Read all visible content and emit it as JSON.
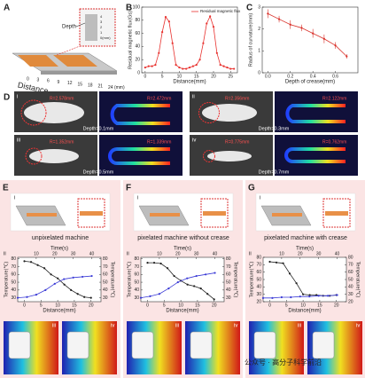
{
  "panel_A": {
    "label": "A",
    "depth": "Depth",
    "distance": "Distance",
    "scale": [
      "0",
      "3",
      "6",
      "9",
      "12",
      "15",
      "18",
      "21",
      "24 (mm)"
    ],
    "inset_scale": [
      "4",
      "3",
      "2",
      "1",
      "0(mm)"
    ]
  },
  "panel_D": {
    "label": "D",
    "items": [
      {
        "num": "i",
        "r_photo": "R=2.578mm",
        "r_sim": "R=2.472mm",
        "depth": "Depth=0.1mm"
      },
      {
        "num": "ii",
        "r_photo": "R=2.356mm",
        "r_sim": "R=2.122mm",
        "depth": "Depth=0.3mm"
      },
      {
        "num": "iii",
        "r_photo": "R=1.352mm",
        "r_sim": "R=1.339mm",
        "depth": "Depth=0.5mm"
      },
      {
        "num": "iv",
        "r_photo": "R=0.775mm",
        "r_sim": "R=0.762mm",
        "depth": "Depth=0.7mm"
      }
    ]
  },
  "watermark": "公众号 · 高分子科学前沿",
  "chart_data": [
    {
      "label": "B",
      "type": "line",
      "xlabel": "Distance(mm)",
      "ylabel": "Residual magnetic flux(Gs)",
      "xlim": [
        -1,
        27
      ],
      "xticks": [
        0,
        5,
        10,
        15,
        20,
        25
      ],
      "ylim": [
        0,
        100
      ],
      "yticks": [
        0,
        20,
        40,
        60,
        80,
        100
      ],
      "legend": "upper right",
      "series": [
        {
          "name": "Residual magnetic flux",
          "color": "#e8322f",
          "x": [
            0,
            1,
            2,
            3,
            4,
            5,
            6,
            7,
            8,
            9,
            10,
            11,
            12,
            13,
            14,
            15,
            16,
            17,
            18,
            19,
            20,
            21,
            22,
            23,
            24,
            25,
            26
          ],
          "values": [
            8,
            10,
            10,
            12,
            30,
            62,
            85,
            78,
            45,
            12,
            8,
            6,
            6,
            8,
            10,
            12,
            20,
            45,
            75,
            86,
            70,
            30,
            12,
            10,
            8,
            6,
            6
          ]
        }
      ]
    },
    {
      "label": "C",
      "type": "line",
      "xlabel": "Depth of crease(mm)",
      "ylabel": "Radius of curvature(mm)",
      "xlim": [
        -0.05,
        0.8
      ],
      "xticks": [
        {
          "value": 0,
          "label": "0.0"
        },
        {
          "value": 0.2,
          "label": "0.2"
        },
        {
          "value": 0.4,
          "label": "0.4"
        },
        {
          "value": 0.6,
          "label": "0.6"
        }
      ],
      "ylim": [
        0,
        3
      ],
      "yticks": [
        0,
        1,
        2,
        3
      ],
      "series": [
        {
          "color": "#d9312a",
          "x": [
            0,
            0.1,
            0.2,
            0.3,
            0.4,
            0.5,
            0.6,
            0.7
          ],
          "values": [
            2.7,
            2.45,
            2.2,
            2.05,
            1.8,
            1.55,
            1.25,
            0.75
          ],
          "errors": [
            0.2,
            0.15,
            0.2,
            0.15,
            0.2,
            0.2,
            0.15,
            0.1
          ]
        }
      ]
    },
    {
      "label": "E",
      "type": "line",
      "caption": "unpixelated machine",
      "sublabels": [
        "i",
        "ii",
        "iii",
        "iv"
      ],
      "xlabel": "Distance(mm)",
      "x2label": "Time(s)",
      "ylabel": "Temperature(℃)",
      "y2label": "Temperature(℃)",
      "xlim": [
        -2,
        23
      ],
      "xticks": [
        0,
        5,
        10,
        15,
        20
      ],
      "x2lim": [
        0,
        45
      ],
      "x2ticks": [
        10,
        20,
        30,
        40
      ],
      "ylim": [
        25,
        82
      ],
      "yticks": [
        30,
        40,
        50,
        60,
        70,
        80
      ],
      "y2lim": [
        25,
        82
      ],
      "y2ticks": [
        30,
        40,
        50,
        60,
        70,
        80
      ],
      "series": [
        {
          "color": "#222222",
          "x": [
            0,
            2,
            4,
            6,
            8,
            10,
            12,
            14,
            16,
            18,
            20
          ],
          "values": [
            77,
            76,
            72,
            68,
            60,
            55,
            47,
            40,
            35,
            31,
            30
          ]
        },
        {
          "color": "#3b3bd6",
          "axis": "y2",
          "xaxis": "x2",
          "x": [
            0,
            5,
            10,
            15,
            20,
            25,
            30,
            35,
            40
          ],
          "values": [
            30,
            31,
            34,
            40,
            48,
            54,
            56,
            57,
            58
          ]
        }
      ]
    },
    {
      "label": "F",
      "type": "line",
      "caption": "pixelated machine without crease",
      "sublabels": [
        "i",
        "ii",
        "iii",
        "iv"
      ],
      "xlabel": "Distance(mm)",
      "x2label": "Time(s)",
      "ylabel": "Temperature(℃)",
      "y2label": "Temperature(℃)",
      "xlim": [
        -2,
        23
      ],
      "xticks": [
        0,
        5,
        10,
        15,
        20
      ],
      "x2lim": [
        0,
        45
      ],
      "x2ticks": [
        10,
        20,
        30,
        40
      ],
      "ylim": [
        25,
        82
      ],
      "yticks": [
        30,
        40,
        50,
        60,
        70,
        80
      ],
      "y2lim": [
        25,
        82
      ],
      "y2ticks": [
        30,
        40,
        50,
        60,
        70,
        80
      ],
      "series": [
        {
          "color": "#222222",
          "x": [
            0,
            2,
            4,
            6,
            8,
            10,
            12,
            14,
            16,
            18,
            20
          ],
          "values": [
            75,
            75,
            74,
            68,
            58,
            52,
            47,
            45,
            42,
            35,
            28
          ]
        },
        {
          "color": "#3b3bd6",
          "axis": "y2",
          "xaxis": "x2",
          "x": [
            0,
            5,
            10,
            15,
            20,
            25,
            30,
            35,
            40
          ],
          "values": [
            30,
            32,
            35,
            42,
            50,
            55,
            58,
            60,
            62
          ]
        }
      ]
    },
    {
      "label": "G",
      "type": "line",
      "caption": "pixelated machine with crease",
      "sublabels": [
        "i",
        "ii",
        "iii",
        "iv"
      ],
      "xlabel": "Distance(mm)",
      "x2label": "Time(s)",
      "ylabel": "Temperature(℃)",
      "y2label": "Temperature(℃)",
      "xlim": [
        -2,
        23
      ],
      "xticks": [
        0,
        5,
        10,
        15,
        20
      ],
      "x2lim": [
        0,
        45
      ],
      "x2ticks": [
        10,
        20,
        30,
        40
      ],
      "ylim": [
        20,
        80
      ],
      "yticks": [
        20,
        30,
        40,
        50,
        60,
        70,
        80
      ],
      "y2lim": [
        20,
        80
      ],
      "y2ticks": [
        20,
        30,
        40,
        50,
        60,
        70,
        80
      ],
      "series": [
        {
          "color": "#222222",
          "x": [
            0,
            2,
            4,
            6,
            8,
            10,
            12,
            14,
            16,
            18,
            20
          ],
          "values": [
            74,
            73,
            72,
            58,
            45,
            30,
            29,
            29,
            28,
            28,
            29
          ]
        },
        {
          "color": "#3b3bd6",
          "axis": "y2",
          "xaxis": "x2",
          "x": [
            0,
            5,
            10,
            15,
            20,
            25,
            30,
            35,
            40
          ],
          "values": [
            25,
            25,
            26,
            26,
            27,
            27,
            28,
            28,
            29
          ]
        }
      ]
    }
  ]
}
